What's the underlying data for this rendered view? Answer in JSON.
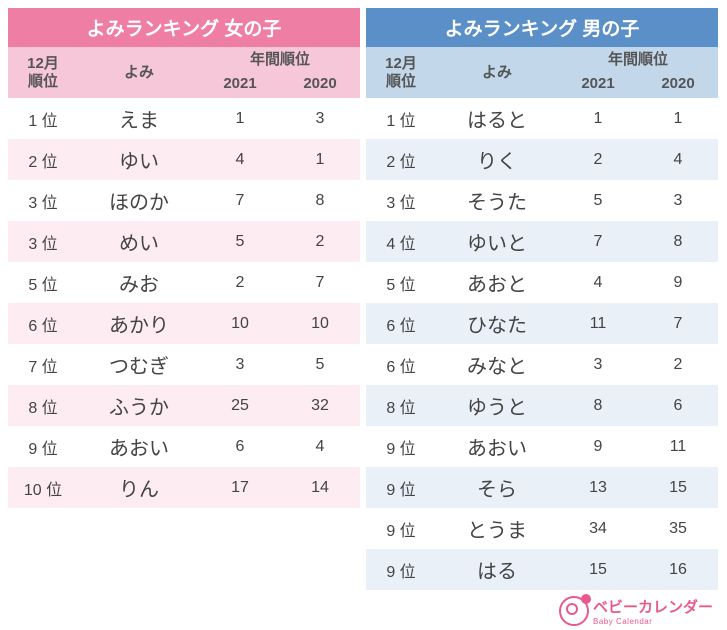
{
  "tables": [
    {
      "id": "girls",
      "title": "よみランキング 女の子",
      "title_bg": "#ef7ea4",
      "header_bg": "#f6c7d9",
      "row_even_bg": "#ffffff",
      "row_odd_bg": "#fdedf2",
      "columns": {
        "rank_label": "12月\n順位",
        "yomi_label": "よみ",
        "year_group_label": "年間順位",
        "year1_label": "2021",
        "year2_label": "2020"
      },
      "rows": [
        {
          "rank": "1 位",
          "yomi": "えま",
          "y2021": "1",
          "y2020": "3"
        },
        {
          "rank": "2 位",
          "yomi": "ゆい",
          "y2021": "4",
          "y2020": "1"
        },
        {
          "rank": "3 位",
          "yomi": "ほのか",
          "y2021": "7",
          "y2020": "8"
        },
        {
          "rank": "3 位",
          "yomi": "めい",
          "y2021": "5",
          "y2020": "2"
        },
        {
          "rank": "5 位",
          "yomi": "みお",
          "y2021": "2",
          "y2020": "7"
        },
        {
          "rank": "6 位",
          "yomi": "あかり",
          "y2021": "10",
          "y2020": "10"
        },
        {
          "rank": "7 位",
          "yomi": "つむぎ",
          "y2021": "3",
          "y2020": "5"
        },
        {
          "rank": "8 位",
          "yomi": "ふうか",
          "y2021": "25",
          "y2020": "32"
        },
        {
          "rank": "9 位",
          "yomi": "あおい",
          "y2021": "6",
          "y2020": "4"
        },
        {
          "rank": "10 位",
          "yomi": "りん",
          "y2021": "17",
          "y2020": "14"
        }
      ]
    },
    {
      "id": "boys",
      "title": "よみランキング 男の子",
      "title_bg": "#5a8fc7",
      "header_bg": "#c2d7ea",
      "row_even_bg": "#ffffff",
      "row_odd_bg": "#e9f0f7",
      "columns": {
        "rank_label": "12月\n順位",
        "yomi_label": "よみ",
        "year_group_label": "年間順位",
        "year1_label": "2021",
        "year2_label": "2020"
      },
      "rows": [
        {
          "rank": "1 位",
          "yomi": "はると",
          "y2021": "1",
          "y2020": "1"
        },
        {
          "rank": "2 位",
          "yomi": "りく",
          "y2021": "2",
          "y2020": "4"
        },
        {
          "rank": "3 位",
          "yomi": "そうた",
          "y2021": "5",
          "y2020": "3"
        },
        {
          "rank": "4 位",
          "yomi": "ゆいと",
          "y2021": "7",
          "y2020": "8"
        },
        {
          "rank": "5 位",
          "yomi": "あおと",
          "y2021": "4",
          "y2020": "9"
        },
        {
          "rank": "6 位",
          "yomi": "ひなた",
          "y2021": "11",
          "y2020": "7"
        },
        {
          "rank": "6 位",
          "yomi": "みなと",
          "y2021": "3",
          "y2020": "2"
        },
        {
          "rank": "8 位",
          "yomi": "ゆうと",
          "y2021": "8",
          "y2020": "6"
        },
        {
          "rank": "9 位",
          "yomi": "あおい",
          "y2021": "9",
          "y2020": "11"
        },
        {
          "rank": "9 位",
          "yomi": "そら",
          "y2021": "13",
          "y2020": "15"
        },
        {
          "rank": "9 位",
          "yomi": "とうま",
          "y2021": "34",
          "y2020": "35"
        },
        {
          "rank": "9 位",
          "yomi": "はる",
          "y2021": "15",
          "y2020": "16"
        }
      ]
    }
  ],
  "footer": {
    "brand_text": "ベビーカレンダー",
    "brand_sub": "Baby Calendar",
    "brand_color": "#e85a8f"
  }
}
